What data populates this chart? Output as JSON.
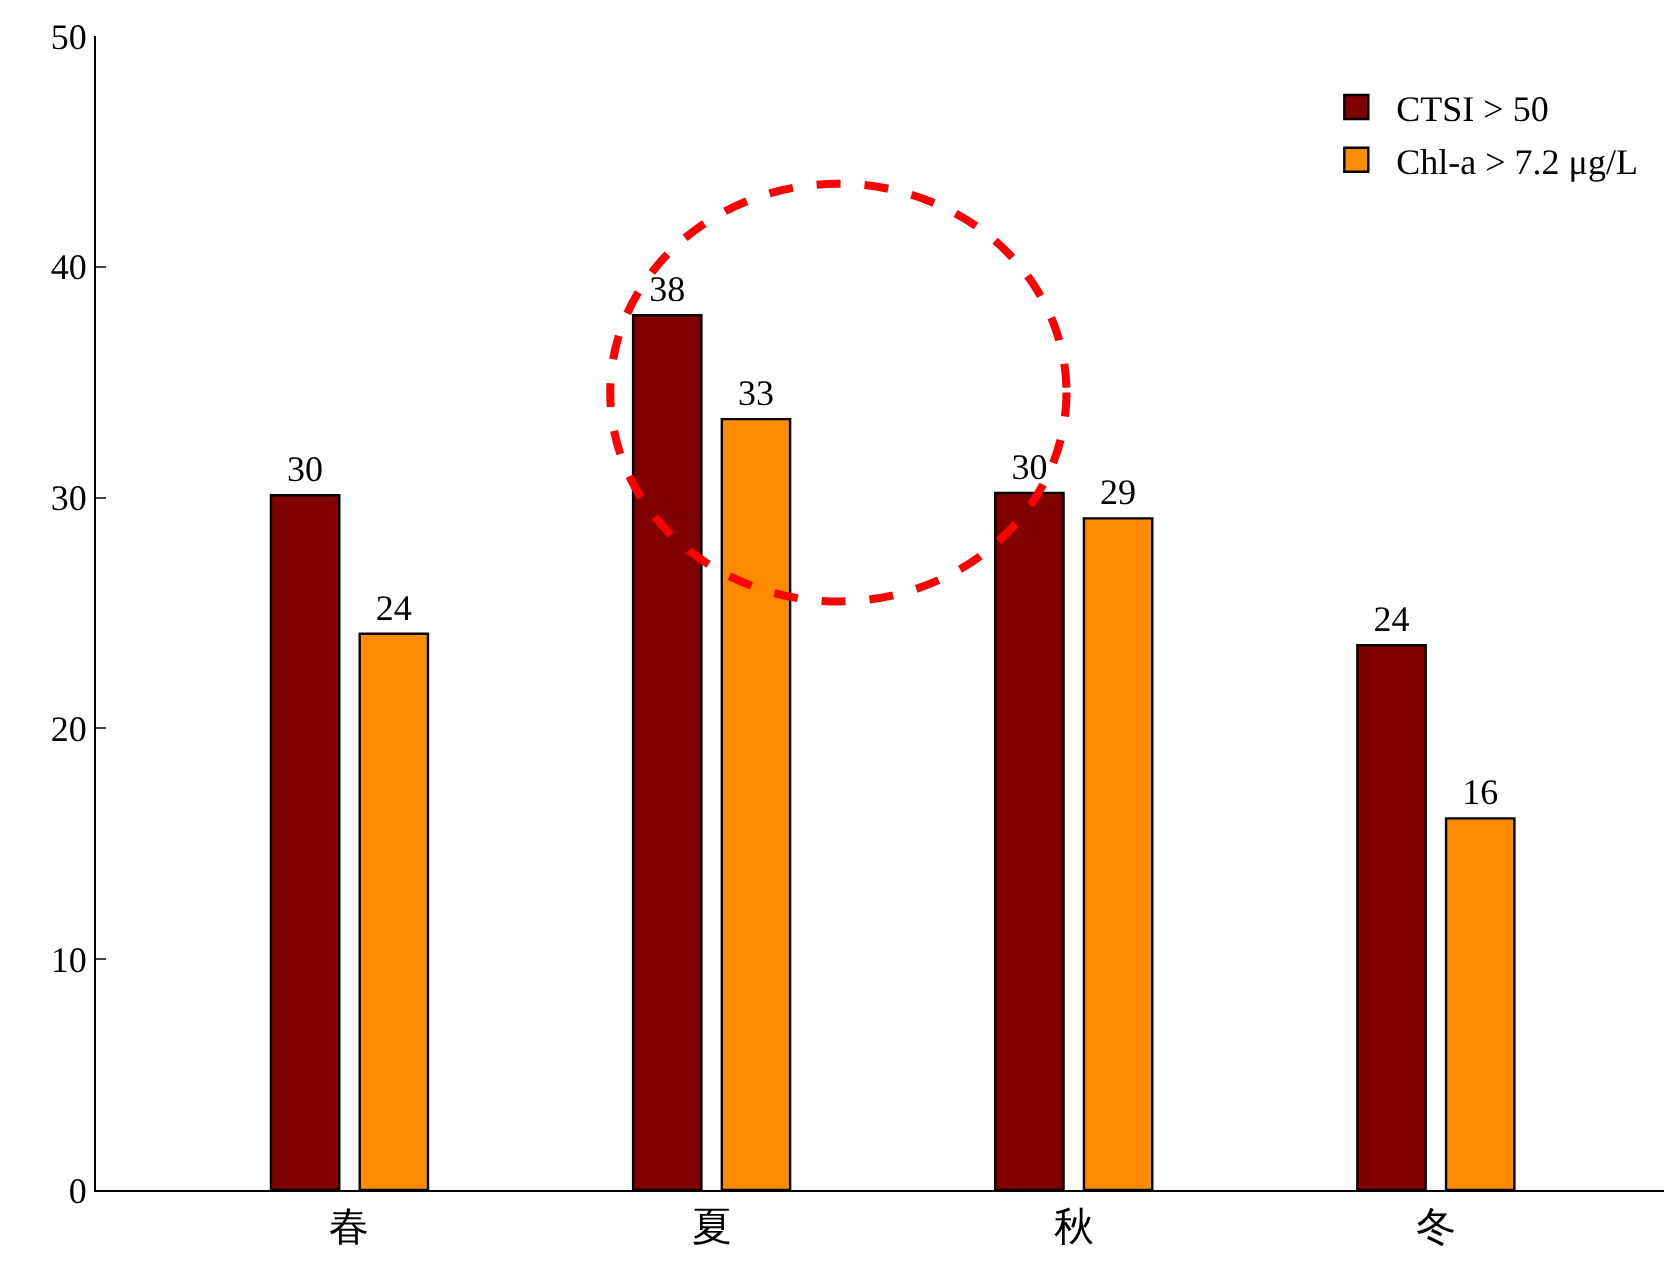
{
  "chart_data": {
    "type": "bar",
    "categories": [
      "春",
      "夏",
      "秋",
      "冬"
    ],
    "series": [
      {
        "name": "CTSI > 50",
        "color": "#800000",
        "values": [
          30.1,
          37.9,
          30.2,
          23.6
        ],
        "value_labels": [
          "30",
          "38",
          "30",
          "24"
        ]
      },
      {
        "name": "Chl-a > 7.2 μg/L",
        "color": "#ff8c00",
        "values": [
          24.1,
          33.4,
          29.1,
          16.1
        ],
        "value_labels": [
          "24",
          "33",
          "29",
          "16"
        ]
      }
    ],
    "ylim": [
      0,
      50
    ],
    "yticks": [
      0,
      10,
      20,
      30,
      40,
      50
    ],
    "legend": "top right"
  }
}
